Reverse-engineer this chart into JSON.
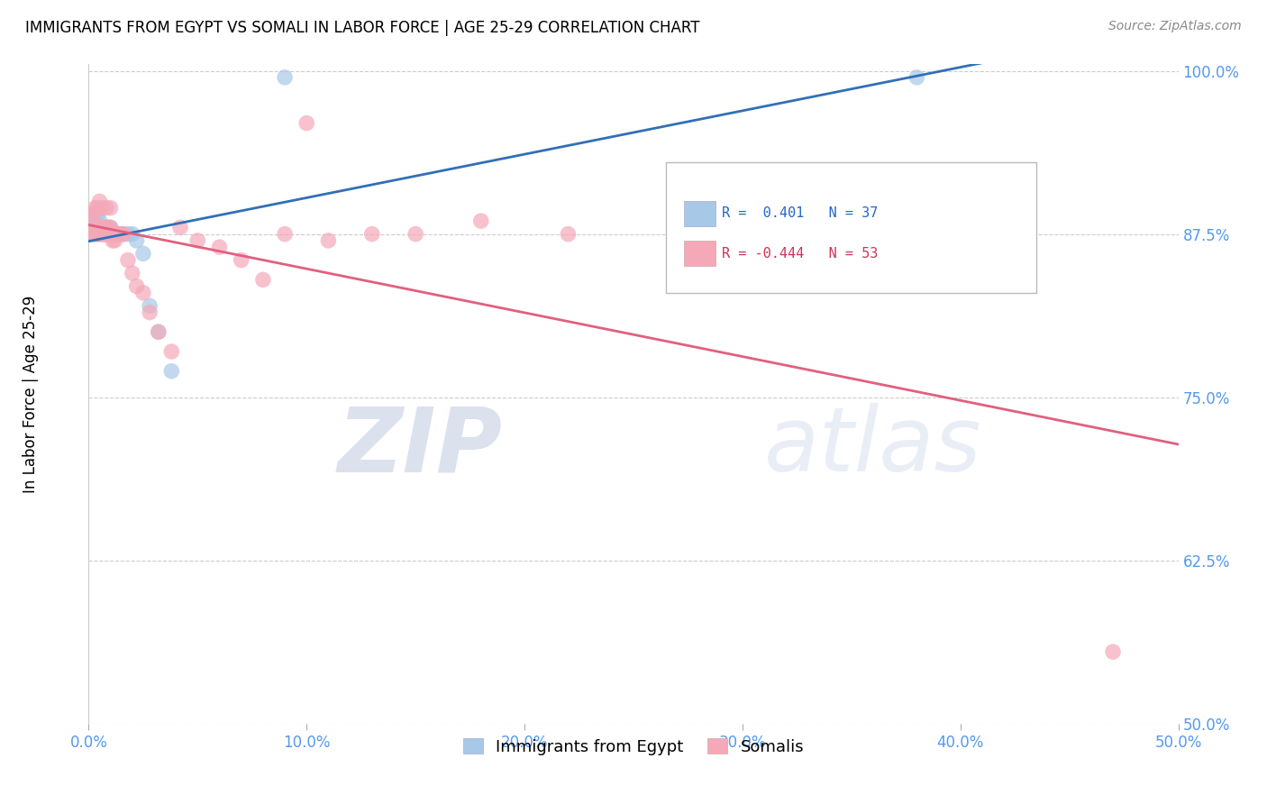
{
  "title": "IMMIGRANTS FROM EGYPT VS SOMALI IN LABOR FORCE | AGE 25-29 CORRELATION CHART",
  "source": "Source: ZipAtlas.com",
  "ylabel": "In Labor Force | Age 25-29",
  "xlim": [
    0.0,
    0.5
  ],
  "ylim": [
    0.5,
    1.005
  ],
  "xtick_labels": [
    "0.0%",
    "",
    "",
    "",
    "",
    "",
    "",
    "",
    "",
    "",
    "10.0%",
    "",
    "",
    "",
    "",
    "",
    "",
    "",
    "",
    "",
    "20.0%",
    "",
    "",
    "",
    "",
    "",
    "",
    "",
    "",
    "",
    "30.0%",
    "",
    "",
    "",
    "",
    "",
    "",
    "",
    "",
    "",
    "40.0%",
    "",
    "",
    "",
    "",
    "",
    "",
    "",
    "",
    "",
    "50.0%"
  ],
  "xtick_vals": [
    0.0,
    0.01,
    0.02,
    0.03,
    0.04,
    0.05,
    0.06,
    0.07,
    0.08,
    0.09,
    0.1,
    0.11,
    0.12,
    0.13,
    0.14,
    0.15,
    0.16,
    0.17,
    0.18,
    0.19,
    0.2,
    0.21,
    0.22,
    0.23,
    0.24,
    0.25,
    0.26,
    0.27,
    0.28,
    0.29,
    0.3,
    0.31,
    0.32,
    0.33,
    0.34,
    0.35,
    0.36,
    0.37,
    0.38,
    0.39,
    0.4,
    0.41,
    0.42,
    0.43,
    0.44,
    0.45,
    0.46,
    0.47,
    0.48,
    0.49,
    0.5
  ],
  "ytick_labels": [
    "50.0%",
    "62.5%",
    "75.0%",
    "87.5%",
    "100.0%"
  ],
  "ytick_vals": [
    0.5,
    0.625,
    0.75,
    0.875,
    1.0
  ],
  "legend_egypt_label": "Immigrants from Egypt",
  "legend_somali_label": "Somalis",
  "r_egypt": "0.401",
  "n_egypt": "37",
  "r_somali": "-0.444",
  "n_somali": "53",
  "egypt_color": "#a8c8e8",
  "somali_color": "#f4a8b8",
  "egypt_line_color": "#3070b8",
  "somali_line_color": "#e06080",
  "watermark_zip": "ZIP",
  "watermark_atlas": "atlas",
  "egypt_x": [
    0.001,
    0.002,
    0.002,
    0.003,
    0.003,
    0.003,
    0.004,
    0.004,
    0.004,
    0.005,
    0.005,
    0.005,
    0.006,
    0.006,
    0.007,
    0.007,
    0.008,
    0.008,
    0.009,
    0.009,
    0.01,
    0.01,
    0.011,
    0.012,
    0.013,
    0.014,
    0.015,
    0.016,
    0.018,
    0.02,
    0.022,
    0.025,
    0.028,
    0.032,
    0.038,
    0.09,
    0.38
  ],
  "egypt_y": [
    0.875,
    0.88,
    0.89,
    0.875,
    0.88,
    0.885,
    0.875,
    0.88,
    0.89,
    0.875,
    0.88,
    0.885,
    0.875,
    0.88,
    0.875,
    0.88,
    0.875,
    0.88,
    0.875,
    0.88,
    0.875,
    0.88,
    0.875,
    0.875,
    0.875,
    0.875,
    0.875,
    0.875,
    0.875,
    0.875,
    0.87,
    0.86,
    0.82,
    0.8,
    0.77,
    0.995,
    0.995
  ],
  "somali_x": [
    0.001,
    0.001,
    0.002,
    0.002,
    0.003,
    0.003,
    0.003,
    0.004,
    0.004,
    0.004,
    0.005,
    0.005,
    0.005,
    0.006,
    0.006,
    0.006,
    0.007,
    0.007,
    0.008,
    0.008,
    0.008,
    0.009,
    0.009,
    0.01,
    0.01,
    0.01,
    0.011,
    0.012,
    0.013,
    0.014,
    0.015,
    0.016,
    0.018,
    0.02,
    0.022,
    0.025,
    0.028,
    0.032,
    0.038,
    0.042,
    0.05,
    0.06,
    0.07,
    0.08,
    0.09,
    0.1,
    0.11,
    0.13,
    0.15,
    0.18,
    0.22,
    0.34,
    0.47
  ],
  "somali_y": [
    0.875,
    0.89,
    0.875,
    0.89,
    0.875,
    0.88,
    0.895,
    0.875,
    0.88,
    0.895,
    0.875,
    0.88,
    0.9,
    0.875,
    0.88,
    0.895,
    0.875,
    0.88,
    0.875,
    0.88,
    0.895,
    0.875,
    0.88,
    0.875,
    0.88,
    0.895,
    0.87,
    0.87,
    0.875,
    0.875,
    0.875,
    0.875,
    0.855,
    0.845,
    0.835,
    0.83,
    0.815,
    0.8,
    0.785,
    0.88,
    0.87,
    0.865,
    0.855,
    0.84,
    0.875,
    0.96,
    0.87,
    0.875,
    0.875,
    0.885,
    0.875,
    0.875,
    0.555
  ]
}
